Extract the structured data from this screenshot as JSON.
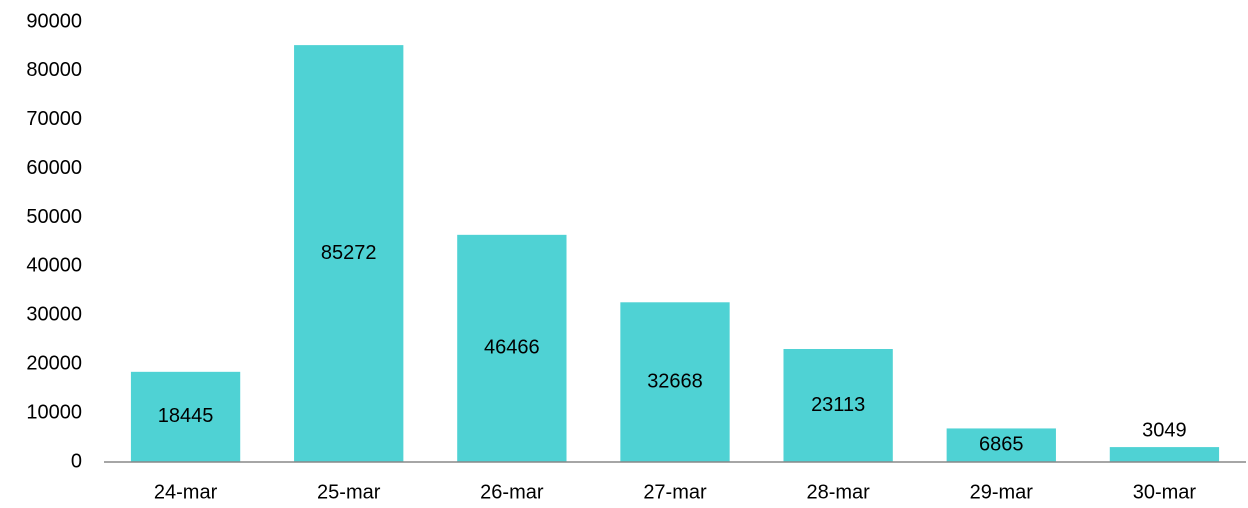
{
  "chart_data": {
    "type": "bar",
    "categories": [
      "24-mar",
      "25-mar",
      "26-mar",
      "27-mar",
      "28-mar",
      "29-mar",
      "30-mar"
    ],
    "values": [
      18445,
      85272,
      46466,
      32668,
      23113,
      6865,
      3049
    ],
    "color": "#4fd2d4",
    "ylim": [
      0,
      90000
    ],
    "yticks": [
      0,
      10000,
      20000,
      30000,
      40000,
      50000,
      60000,
      70000,
      80000,
      90000
    ],
    "grid": false
  }
}
